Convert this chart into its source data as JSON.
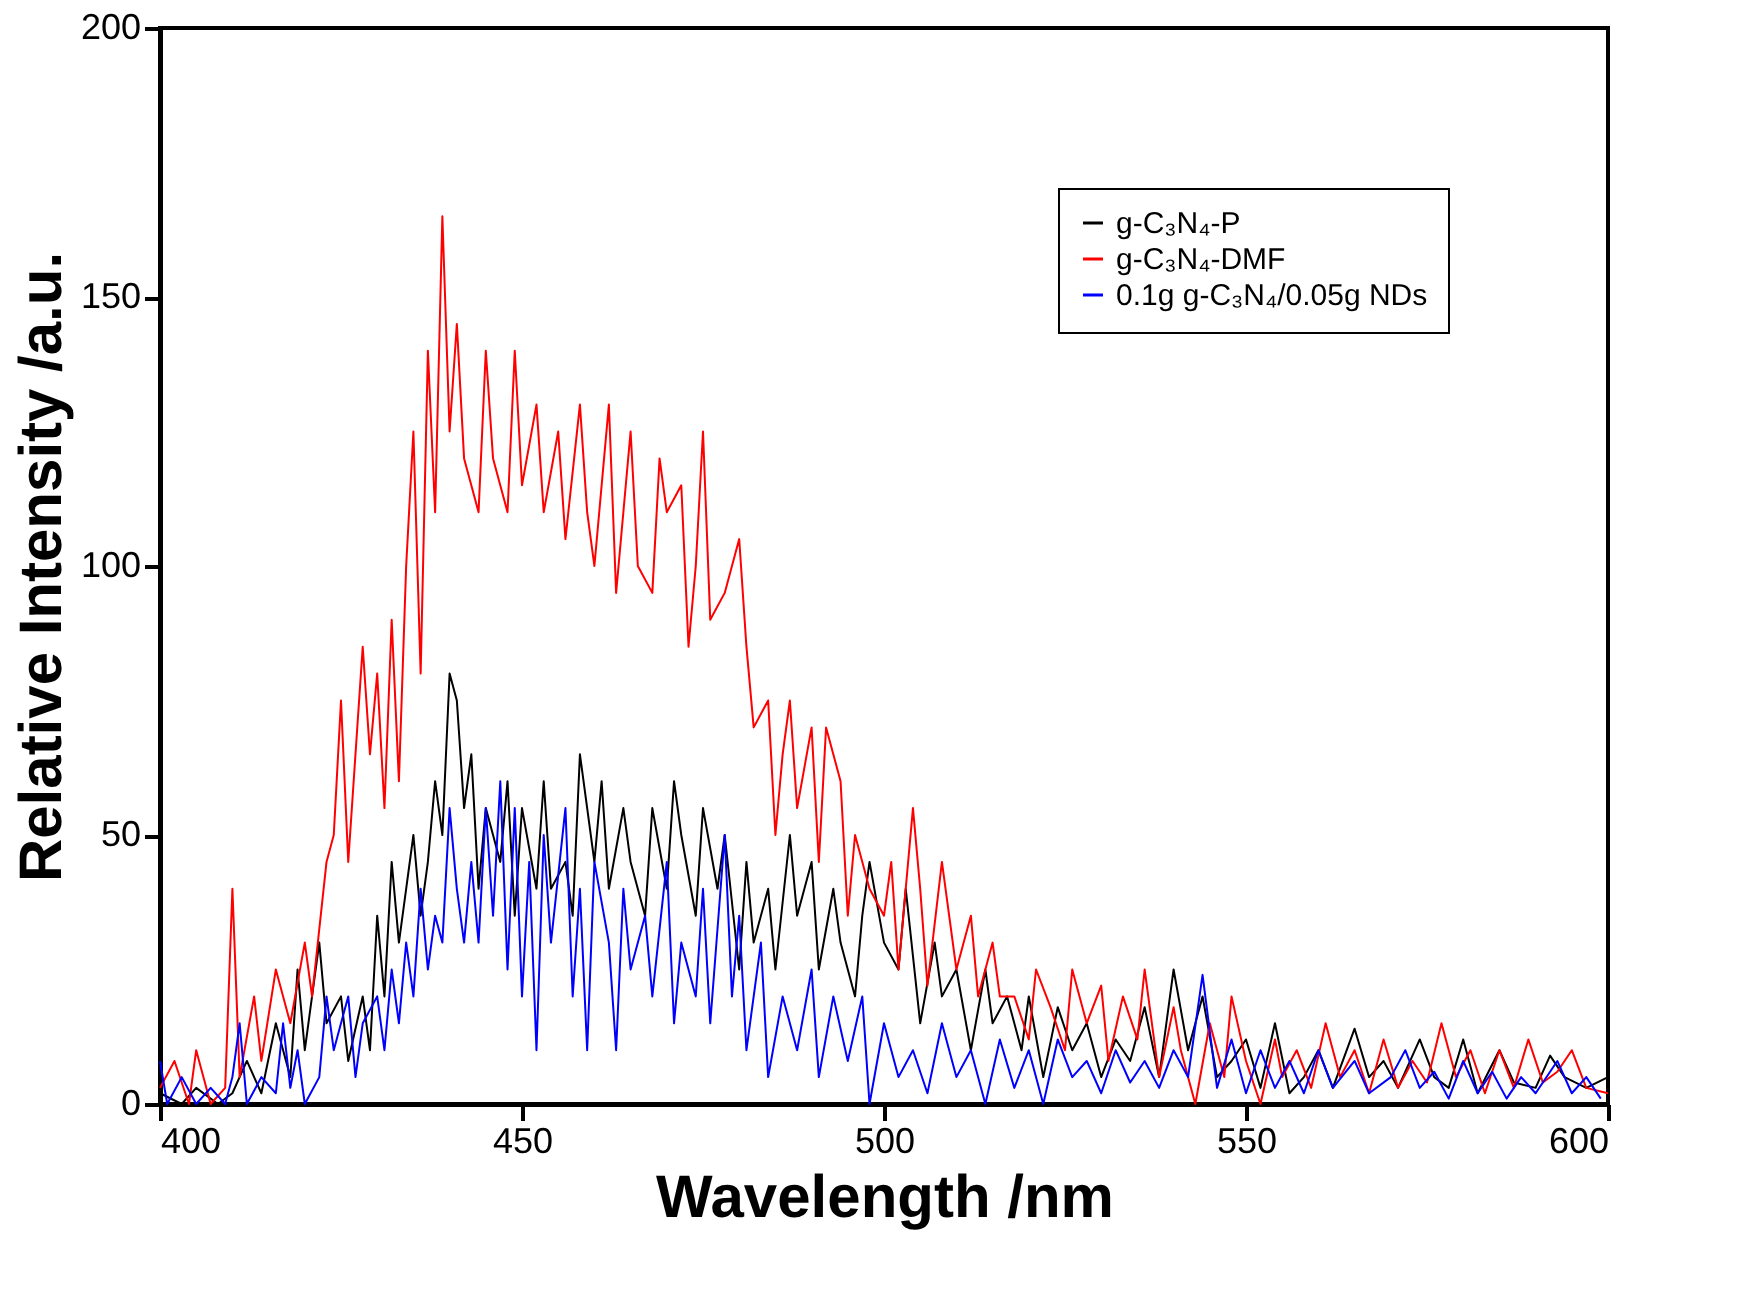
{
  "chart_data": {
    "type": "line",
    "xlabel": "Wavelength /nm",
    "ylabel": "Relative Intensity /a.u.",
    "xlim": [
      400,
      600
    ],
    "xticks": [
      400,
      450,
      500,
      550,
      600
    ],
    "ylim": [
      0,
      200
    ],
    "yticks": [
      0,
      50,
      100,
      150,
      200
    ],
    "grid": false,
    "legend": "top right",
    "marker": "none",
    "line_style": "solid",
    "series": [
      {
        "name": "g-C₃N₄-P",
        "color": "#000000",
        "x": [
          400,
          403,
          405,
          408,
          410,
          412,
          414,
          416,
          418,
          419,
          420,
          422,
          423,
          425,
          426,
          428,
          429,
          430,
          431,
          432,
          433,
          434,
          435,
          436,
          437,
          438,
          439,
          440,
          441,
          442,
          443,
          444,
          445,
          447,
          448,
          449,
          450,
          452,
          453,
          454,
          456,
          457,
          458,
          460,
          461,
          462,
          464,
          465,
          467,
          468,
          470,
          471,
          472,
          474,
          475,
          477,
          478,
          480,
          481,
          482,
          484,
          485,
          487,
          488,
          490,
          491,
          493,
          494,
          496,
          497,
          498,
          500,
          502,
          503,
          505,
          507,
          508,
          510,
          512,
          514,
          515,
          517,
          519,
          520,
          522,
          524,
          526,
          528,
          530,
          532,
          534,
          536,
          538,
          540,
          542,
          544,
          546,
          548,
          550,
          552,
          554,
          556,
          558,
          560,
          562,
          565,
          567,
          569,
          571,
          574,
          576,
          578,
          580,
          582,
          585,
          587,
          590,
          592,
          594,
          597,
          600
        ],
        "values": [
          2,
          0,
          3,
          0,
          2,
          8,
          2,
          15,
          5,
          25,
          10,
          30,
          15,
          20,
          8,
          20,
          10,
          35,
          20,
          45,
          30,
          40,
          50,
          35,
          45,
          60,
          50,
          80,
          75,
          55,
          65,
          40,
          55,
          45,
          60,
          35,
          55,
          40,
          60,
          40,
          45,
          35,
          65,
          45,
          60,
          40,
          55,
          45,
          35,
          55,
          40,
          60,
          50,
          35,
          55,
          40,
          50,
          25,
          45,
          30,
          40,
          25,
          50,
          35,
          45,
          25,
          40,
          30,
          20,
          35,
          45,
          30,
          25,
          40,
          15,
          30,
          20,
          25,
          10,
          25,
          15,
          20,
          10,
          20,
          5,
          18,
          10,
          15,
          5,
          12,
          8,
          18,
          5,
          25,
          10,
          20,
          5,
          8,
          12,
          3,
          15,
          2,
          5,
          10,
          3,
          14,
          5,
          8,
          3,
          12,
          5,
          3,
          12,
          2,
          10,
          4,
          3,
          9,
          5,
          3,
          5
        ]
      },
      {
        "name": "g-C₃N₄-DMF",
        "color": "#ff0000",
        "x": [
          400,
          402,
          404,
          405,
          407,
          409,
          410,
          411,
          413,
          414,
          416,
          418,
          420,
          421,
          423,
          424,
          425,
          426,
          428,
          429,
          430,
          431,
          432,
          433,
          434,
          435,
          436,
          437,
          438,
          439,
          440,
          441,
          442,
          444,
          445,
          446,
          448,
          449,
          450,
          452,
          453,
          455,
          456,
          458,
          459,
          460,
          462,
          463,
          465,
          466,
          468,
          469,
          470,
          472,
          473,
          474,
          475,
          476,
          478,
          480,
          481,
          482,
          484,
          485,
          486,
          487,
          488,
          490,
          491,
          492,
          494,
          495,
          496,
          498,
          500,
          501,
          502,
          504,
          505,
          506,
          508,
          509,
          510,
          512,
          513,
          515,
          516,
          518,
          520,
          521,
          523,
          525,
          526,
          528,
          530,
          531,
          533,
          535,
          536,
          538,
          540,
          541,
          543,
          545,
          547,
          548,
          550,
          552,
          554,
          555,
          557,
          559,
          561,
          563,
          565,
          567,
          569,
          571,
          573,
          575,
          577,
          579,
          581,
          583,
          585,
          587,
          589,
          591,
          593,
          595,
          597,
          600
        ],
        "values": [
          3,
          8,
          0,
          10,
          0,
          3,
          40,
          5,
          20,
          8,
          25,
          15,
          30,
          20,
          45,
          50,
          75,
          45,
          85,
          65,
          80,
          55,
          90,
          60,
          100,
          125,
          80,
          140,
          110,
          165,
          125,
          145,
          120,
          110,
          140,
          120,
          110,
          140,
          115,
          130,
          110,
          125,
          105,
          130,
          110,
          100,
          130,
          95,
          125,
          100,
          95,
          120,
          110,
          115,
          85,
          100,
          125,
          90,
          95,
          105,
          85,
          70,
          75,
          50,
          65,
          75,
          55,
          70,
          45,
          70,
          60,
          35,
          50,
          40,
          35,
          45,
          25,
          55,
          40,
          22,
          45,
          35,
          25,
          35,
          20,
          30,
          20,
          20,
          12,
          25,
          18,
          10,
          25,
          15,
          22,
          8,
          20,
          12,
          25,
          5,
          18,
          10,
          0,
          15,
          5,
          20,
          8,
          0,
          12,
          5,
          10,
          3,
          15,
          5,
          10,
          2,
          12,
          3,
          8,
          4,
          15,
          5,
          10,
          2,
          10,
          3,
          12,
          4,
          6,
          10,
          3,
          2
        ]
      },
      {
        "name": "0.1g g-C₃N₄/0.05g NDs",
        "color": "#0000ff",
        "x": [
          400,
          401,
          403,
          405,
          407,
          409,
          410,
          411,
          412,
          414,
          416,
          417,
          418,
          419,
          420,
          422,
          423,
          424,
          426,
          427,
          428,
          430,
          431,
          432,
          433,
          434,
          435,
          436,
          437,
          438,
          439,
          440,
          441,
          442,
          443,
          444,
          445,
          446,
          447,
          448,
          449,
          450,
          451,
          452,
          453,
          454,
          456,
          457,
          458,
          459,
          460,
          462,
          463,
          464,
          465,
          467,
          468,
          470,
          471,
          472,
          474,
          475,
          476,
          478,
          479,
          480,
          481,
          483,
          484,
          486,
          488,
          490,
          491,
          493,
          495,
          497,
          498,
          500,
          502,
          504,
          506,
          508,
          510,
          512,
          514,
          516,
          518,
          520,
          522,
          524,
          526,
          528,
          530,
          532,
          534,
          536,
          538,
          540,
          542,
          544,
          546,
          548,
          550,
          552,
          554,
          556,
          558,
          560,
          562,
          565,
          567,
          570,
          572,
          574,
          576,
          578,
          580,
          582,
          584,
          586,
          588,
          590,
          593,
          595,
          597,
          599
        ],
        "values": [
          8,
          0,
          5,
          0,
          3,
          0,
          5,
          15,
          0,
          5,
          2,
          15,
          3,
          10,
          0,
          5,
          20,
          10,
          20,
          5,
          15,
          20,
          10,
          25,
          15,
          30,
          20,
          40,
          25,
          35,
          30,
          55,
          40,
          30,
          45,
          30,
          55,
          35,
          60,
          25,
          55,
          20,
          45,
          10,
          50,
          30,
          55,
          20,
          40,
          10,
          45,
          30,
          10,
          40,
          25,
          35,
          20,
          45,
          15,
          30,
          20,
          40,
          15,
          50,
          20,
          35,
          10,
          30,
          5,
          20,
          10,
          25,
          5,
          20,
          8,
          20,
          0,
          15,
          5,
          10,
          2,
          15,
          5,
          10,
          0,
          12,
          3,
          10,
          0,
          12,
          5,
          8,
          2,
          10,
          4,
          8,
          3,
          10,
          5,
          24,
          3,
          12,
          2,
          10,
          3,
          8,
          2,
          10,
          3,
          8,
          2,
          5,
          10,
          3,
          6,
          1,
          8,
          2,
          6,
          1,
          5,
          2,
          8,
          2,
          5,
          1
        ]
      }
    ]
  }
}
